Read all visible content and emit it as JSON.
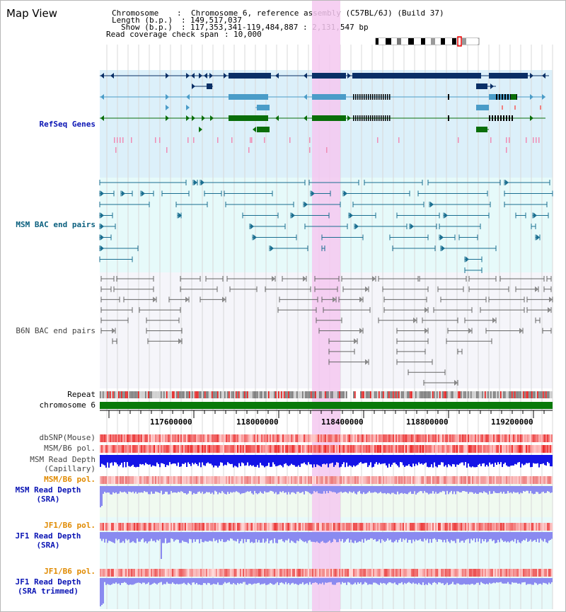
{
  "title": "Map View",
  "info": {
    "chromosome_label": "Chromosome",
    "chromosome_value": "Chromosome 6, reference assembly (C57BL/6J) (Build 37)",
    "length_label": "Length (b.p.)",
    "length_value": "149,517,037",
    "show_label": "Show (b.p.)",
    "show_value": "117,353,341-119,484,887 : 2,131,547 bp",
    "coverage_label": "Read coverage check span",
    "coverage_value": "10,000"
  },
  "tracks": {
    "refseq": "RefSeq Genes",
    "msm_bac": "MSM BAC end pairs",
    "b6n_bac": "B6N BAC end pairs",
    "repeat": "Repeat",
    "chromosome": "chromosome 6",
    "dbsnp": "dbSNP(Mouse)",
    "msm_b6_pol": "MSM/B6 pol.",
    "msm_depth_cap_1": "MSM Read Depth",
    "msm_depth_cap_2": "(Capillary)",
    "msm_b6_pol2": "MSM/B6 pol.",
    "msm_depth_sra_1": "MSM Read Depth",
    "msm_depth_sra_2": "(SRA)",
    "jf1_b6_pol": "JF1/B6 pol.",
    "jf1_depth_sra_1": "JF1 Read Depth",
    "jf1_depth_sra_2": "(SRA)",
    "jf1_b6_pol2": "JF1/B6 pol.",
    "jf1_depth_trim_1": "JF1 Read Depth",
    "jf1_depth_trim_2": "(SRA trimmed)"
  },
  "axis": {
    "ticks": [
      "117600000",
      "118000000",
      "118400000",
      "118800000",
      "119200000"
    ]
  },
  "colors": {
    "refseq_bg": "#dcf0fa",
    "msm_bg": "#e6fafa",
    "b6n_bg": "#f5f5fa",
    "highlight": "#f5c8f0",
    "gene_dark": "#0a2f66",
    "gene_mid": "#4a9cc8",
    "gene_green": "#0a6e0a",
    "msm_line": "#1a6e90",
    "b6n_line": "#666666",
    "chrom_bar": "#0a7a0a",
    "depth_dark": "#1414e6",
    "depth_light": "#8a8af0"
  }
}
